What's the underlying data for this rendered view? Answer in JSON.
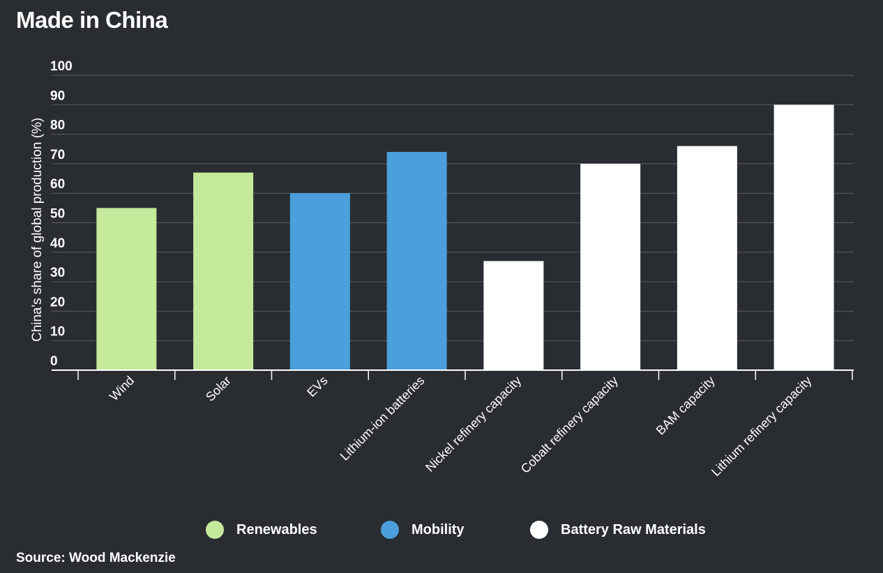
{
  "title": "Made in China",
  "source": "Source: Wood Mackenzie",
  "colors": {
    "background": "#292d31",
    "gridline": "#5a5e63",
    "axis": "#ffffff",
    "renewables": "#c5e99b",
    "mobility": "#4a9fdc",
    "battery_raw_materials": "#ffffff"
  },
  "legend": [
    {
      "key": "renewables",
      "label": "Renewables"
    },
    {
      "key": "mobility",
      "label": "Mobility"
    },
    {
      "key": "battery_raw_materials",
      "label": "Battery Raw Materials"
    }
  ],
  "chart_data": {
    "type": "bar",
    "title": "Made in China",
    "xlabel": "",
    "ylabel": "China's share of global production (%)",
    "ylim": [
      0,
      100
    ],
    "yticks": [
      0,
      10,
      20,
      30,
      40,
      50,
      60,
      70,
      80,
      90,
      100
    ],
    "grid": true,
    "legend_position": "bottom",
    "categories": [
      "Wind",
      "Solar",
      "EVs",
      "Lithium-ion batteries",
      "Nickel refinery capacity",
      "Cobalt refinery capacity",
      "BAM capacity",
      "Lithium refinery capacity"
    ],
    "values": [
      55,
      67,
      60,
      74,
      37,
      70,
      76,
      90
    ],
    "groups": [
      "renewables",
      "renewables",
      "mobility",
      "mobility",
      "battery_raw_materials",
      "battery_raw_materials",
      "battery_raw_materials",
      "battery_raw_materials"
    ],
    "series": [
      {
        "name": "",
        "values": [
          55,
          67,
          60,
          74,
          37,
          70,
          76,
          90
        ]
      }
    ]
  }
}
